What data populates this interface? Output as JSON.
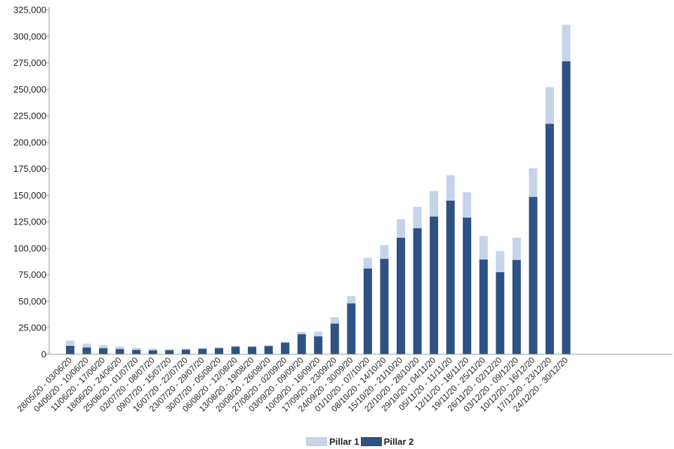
{
  "chart_data": {
    "type": "bar",
    "stacked": true,
    "categories": [
      "28/05/20 - 03/06/20",
      "04/06/20 - 10/06/20",
      "11/06/20 - 17/06/20",
      "18/06/20 - 24/06/20",
      "25/06/20 - 01/07/20",
      "02/07/20 - 08/07/20",
      "09/07/20 - 15/07/20",
      "16/07/20 - 22/07/20",
      "23/07/20 - 29/07/20",
      "30/07/20 - 05/08/20",
      "06/08/20 - 12/08/20",
      "13/08/20 - 19/08/20",
      "20/08/20 - 26/08/20",
      "27/08/20 - 02/09/20",
      "03/09/20 - 09/09/20",
      "10/09/20 - 16/09/20",
      "17/09/20 - 23/09/20",
      "24/09/20 - 30/09/20",
      "01/10/20 - 07/10/20",
      "08/10/20 - 14/10/20",
      "15/10/20 - 21/10/20",
      "22/10/20 - 28/10/20",
      "29/10/20 - 04/11/20",
      "05/11/20 - 11/11/20",
      "12/11/20 - 18/11/20",
      "19/11/20 - 25/11/20",
      "26/11/20 - 02/12/20",
      "03/12/20 - 09/12/20",
      "10/12/20 - 16/12/20",
      "17/12/20 - 23/12/20",
      "24/12/20 - 30/12/20"
    ],
    "series": [
      {
        "name": "Pillar 2",
        "color": "#2e5283",
        "values": [
          8000,
          6500,
          5800,
          5000,
          4200,
          3800,
          3900,
          4300,
          5200,
          5800,
          7200,
          7100,
          7800,
          11000,
          19000,
          17000,
          29000,
          48000,
          81000,
          90000,
          110000,
          119000,
          130000,
          145000,
          129000,
          89500,
          77500,
          89000,
          148500,
          217500,
          276500
        ]
      },
      {
        "name": "Pillar 1",
        "color": "#c5d4e8",
        "values": [
          5000,
          3500,
          2700,
          2500,
          1800,
          1700,
          1100,
          1200,
          1000,
          900,
          800,
          600,
          800,
          1000,
          2000,
          4500,
          6000,
          7000,
          10000,
          13000,
          17500,
          20000,
          24000,
          24000,
          24000,
          22000,
          20000,
          21000,
          27000,
          34500,
          34500
        ]
      }
    ],
    "ylim": [
      0,
      325000
    ],
    "yticks": [
      "0",
      "25,000",
      "50,000",
      "75,000",
      "100,000",
      "125,000",
      "150,000",
      "175,000",
      "200,000",
      "225,000",
      "250,000",
      "275,000",
      "300,000",
      "325,000"
    ],
    "grid": false,
    "legend_position": "bottom-center"
  },
  "legend": {
    "items": [
      {
        "label": "Pillar 1",
        "color": "#c5d4e8"
      },
      {
        "label": "Pillar 2",
        "color": "#2e5283"
      }
    ]
  }
}
